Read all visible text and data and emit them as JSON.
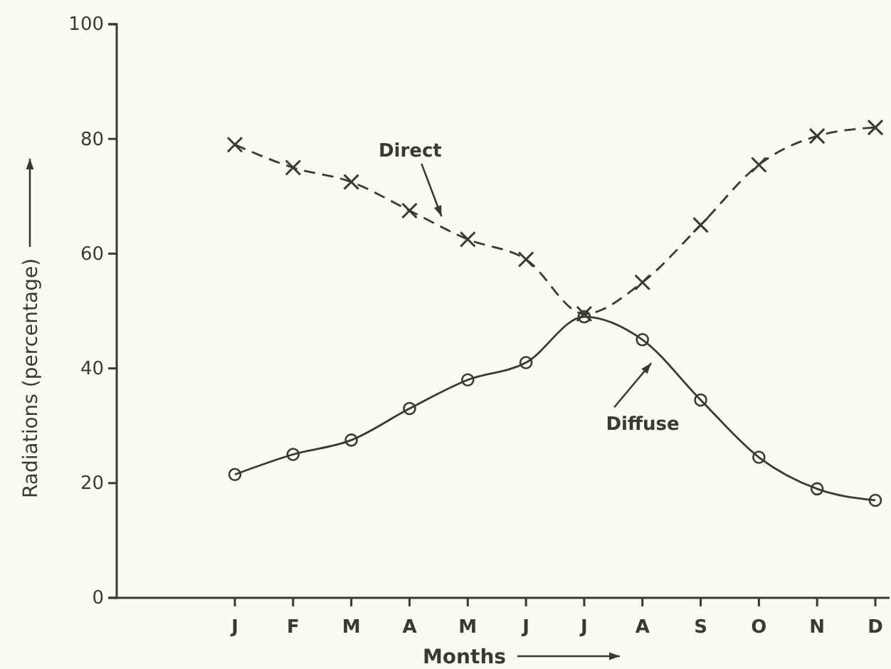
{
  "chart_data": {
    "type": "line",
    "xlabel": "Months",
    "ylabel": "Radiations (percentage)",
    "categories": [
      "J",
      "F",
      "M",
      "A",
      "M",
      "J",
      "J",
      "A",
      "S",
      "O",
      "N",
      "D"
    ],
    "series": [
      {
        "name": "Direct",
        "color": "#3a3a30",
        "marker": "cross",
        "line_style": "dashed",
        "values": [
          79,
          75,
          72.5,
          67.5,
          62.5,
          59,
          49.5,
          55,
          65,
          75.5,
          80.5,
          82
        ]
      },
      {
        "name": "Diffuse",
        "color": "#3a3a30",
        "marker": "circle",
        "line_style": "solid",
        "values": [
          21.5,
          25,
          27.5,
          33,
          38,
          41,
          49,
          45,
          34.5,
          24.5,
          19,
          17
        ]
      }
    ],
    "ylim": [
      0,
      100
    ],
    "yticks": [
      0,
      20,
      40,
      60,
      80,
      100
    ],
    "grid": false
  }
}
